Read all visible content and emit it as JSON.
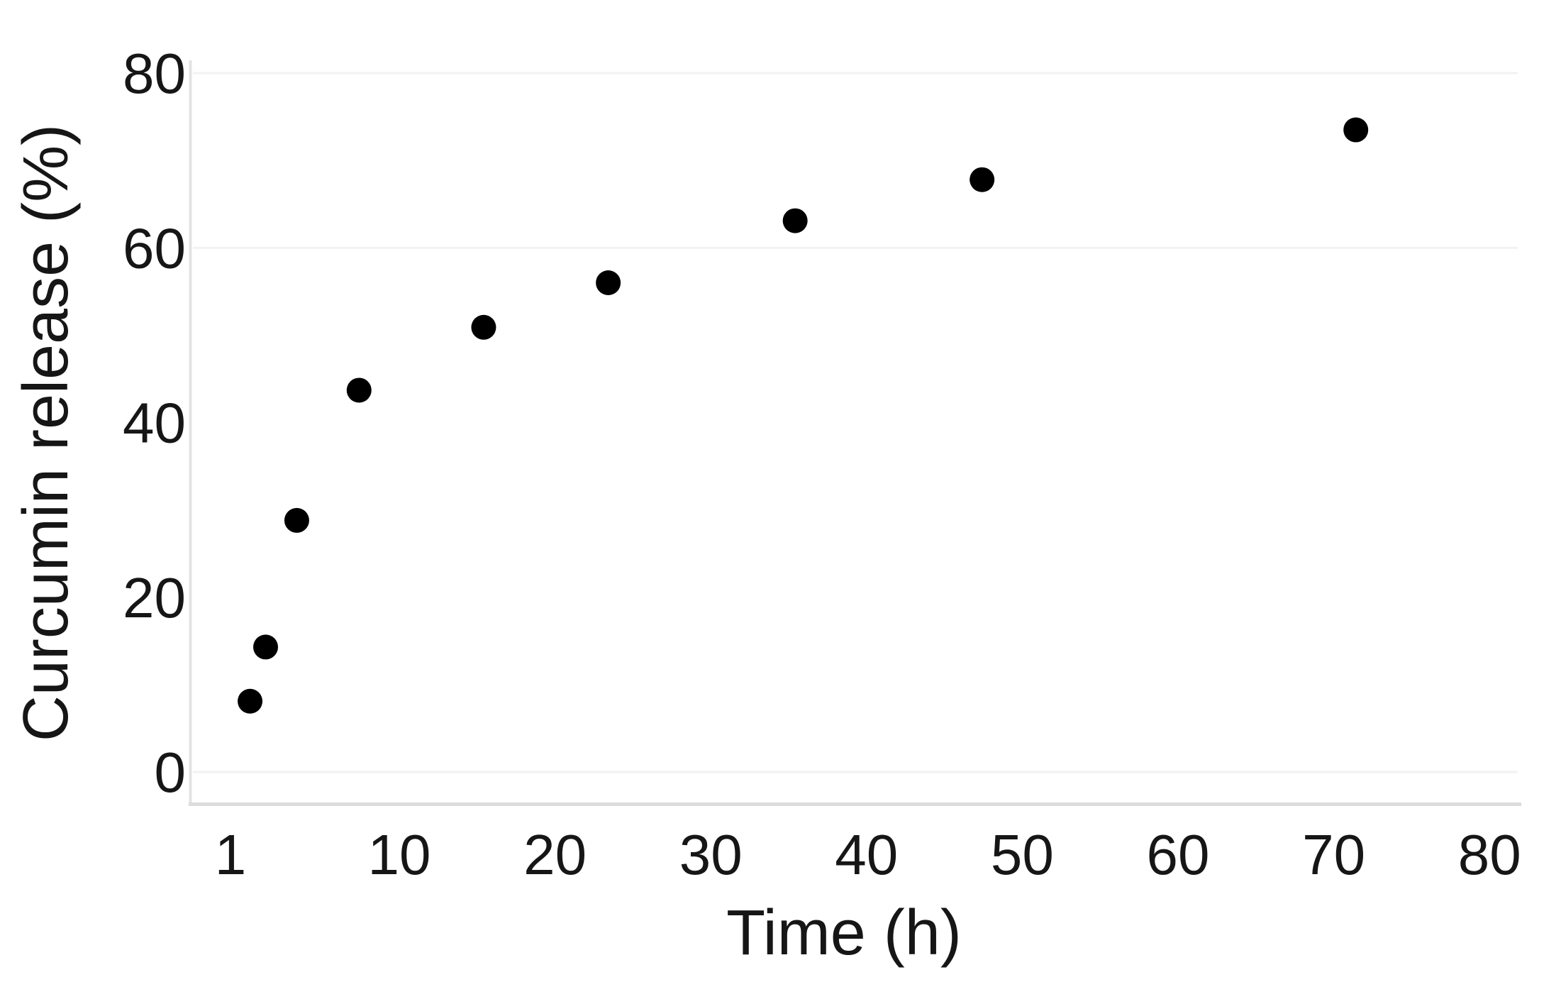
{
  "chart": {
    "y_axis_title": "Curcumin release (%)",
    "x_axis_title": "Time (h)",
    "x_tick_labels": [
      "1",
      "10",
      "20",
      "30",
      "40",
      "50",
      "60",
      "70",
      "80"
    ],
    "y_tick_labels": [
      "0",
      "20",
      "40",
      "60",
      "80"
    ],
    "colors": {
      "marker": "#000000",
      "text": "#161616",
      "axis_line": "#dcdcdc",
      "gridline": "#f2f2f2",
      "background": "#ffffff"
    }
  },
  "chart_data": {
    "type": "scatter",
    "title": "",
    "xlabel": "Time (h)",
    "ylabel": "Curcumin release (%)",
    "x": [
      1,
      2,
      4,
      8,
      16,
      24,
      36,
      48,
      72
    ],
    "y": [
      8.1,
      14.3,
      28.8,
      43.7,
      50.9,
      56.0,
      63.1,
      67.8,
      73.5
    ],
    "x_tick_values": [
      1,
      10,
      20,
      30,
      40,
      50,
      60,
      70,
      80
    ],
    "y_tick_values": [
      0,
      20,
      40,
      60,
      80
    ],
    "xlim": [
      0,
      80
    ],
    "ylim": [
      0,
      80
    ],
    "legend": "none",
    "grid": "faint horizontal lines at 0, 60, 80",
    "marker": {
      "shape": "circle",
      "color": "#000000",
      "radius_px": 17.5
    }
  }
}
